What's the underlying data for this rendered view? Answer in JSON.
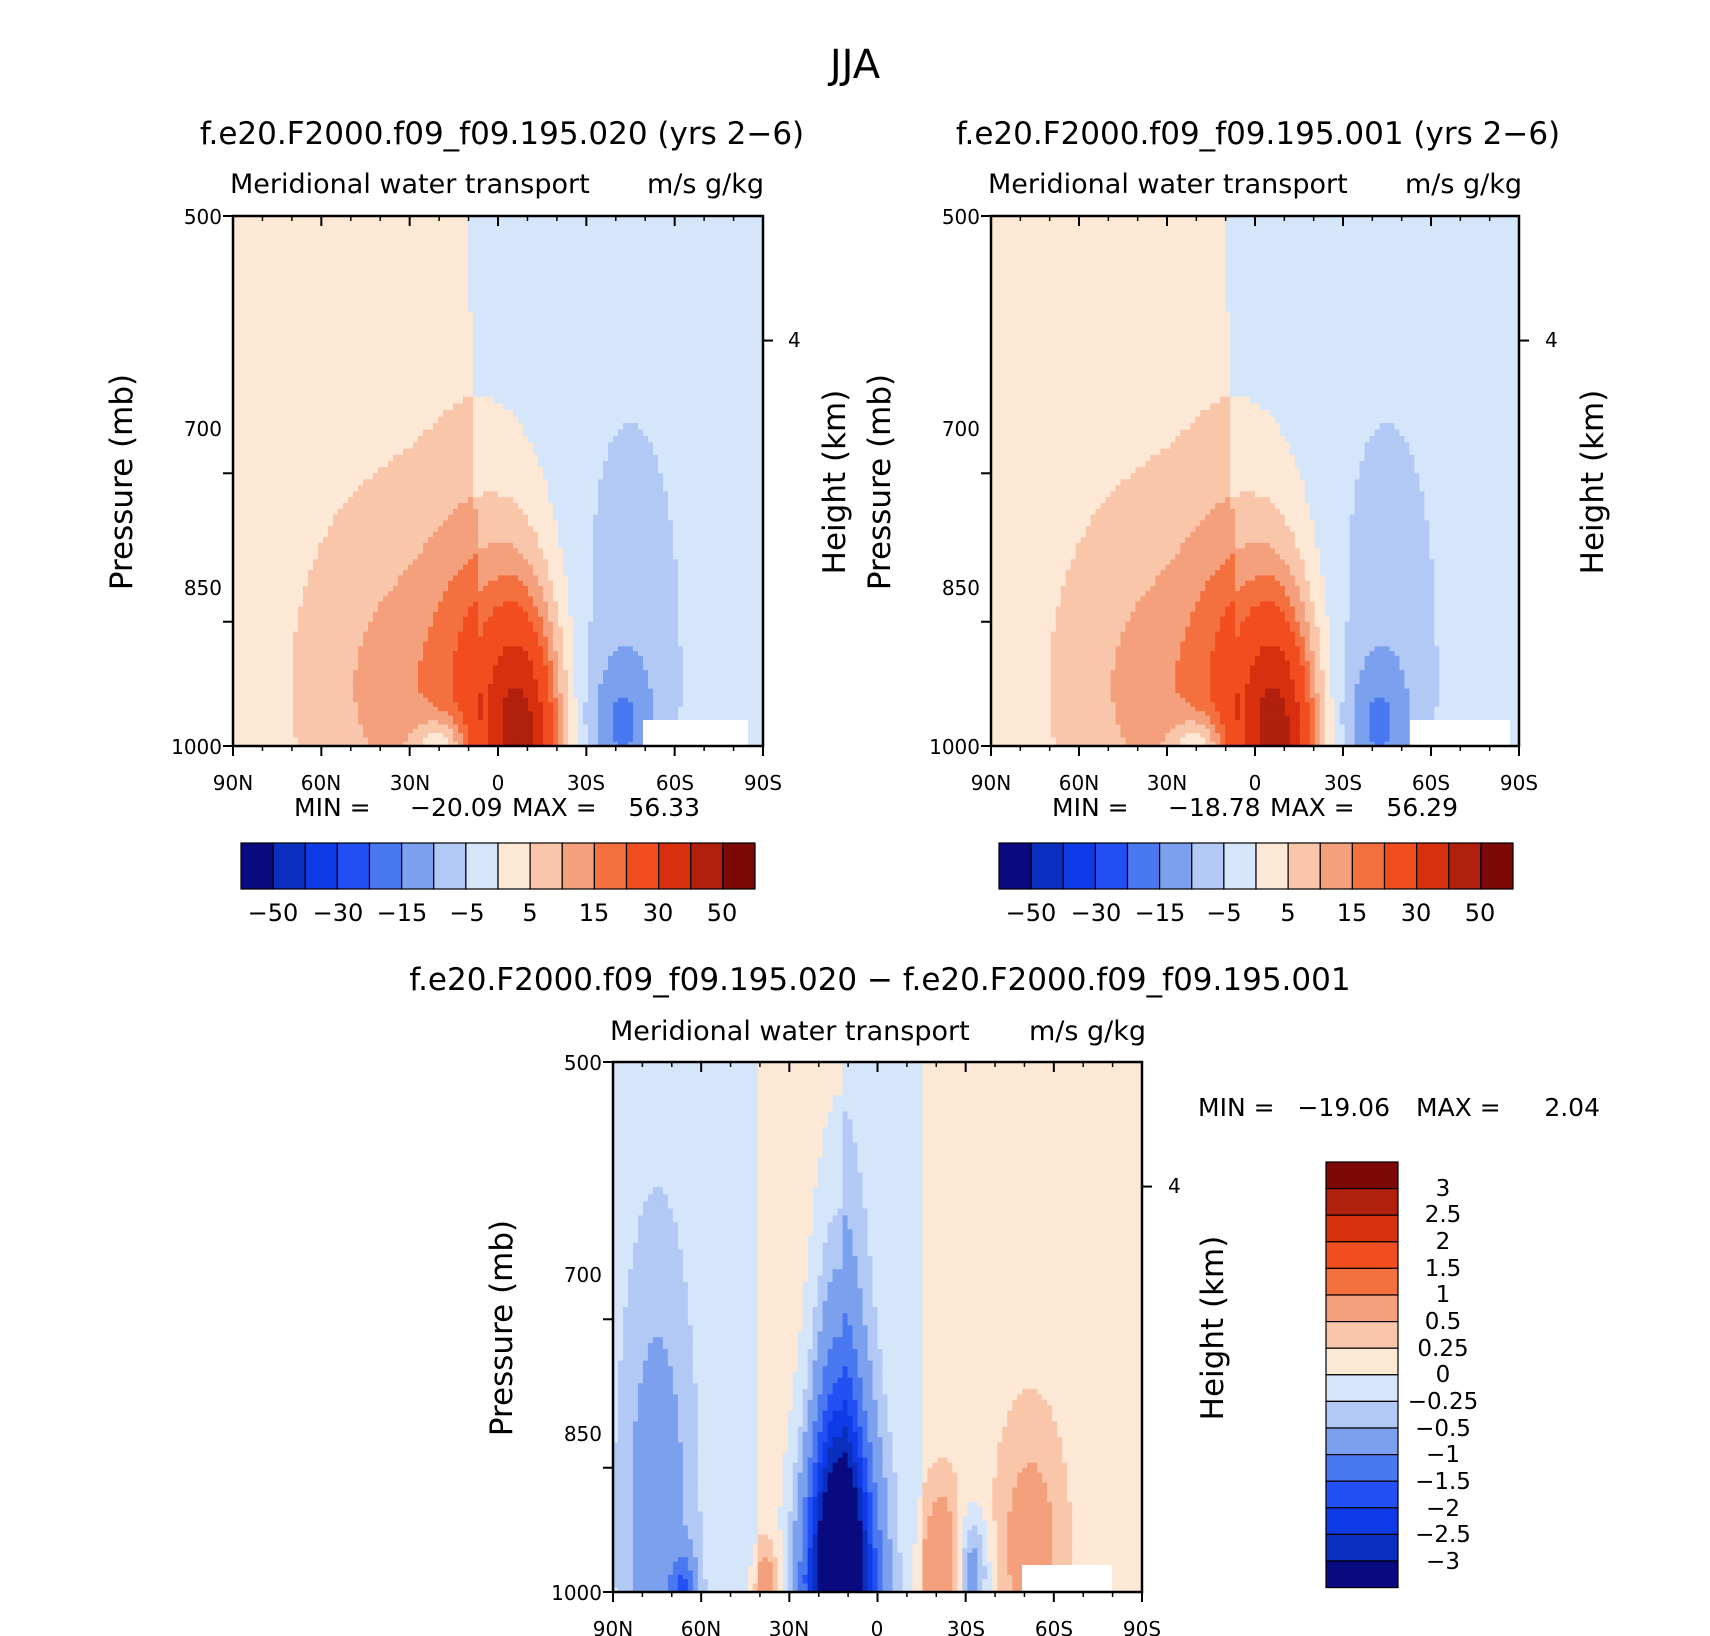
{
  "figure_title": "JJA",
  "colors": {
    "panel": [
      "#0a0a80",
      "#0a2fbf",
      "#0f3be6",
      "#2250f5",
      "#4a78f0",
      "#7ba0ee",
      "#b2c8f5",
      "#d6e6fa",
      "#fde8d6",
      "#f9c6aa",
      "#f5a07d",
      "#f4703e",
      "#f24d1f",
      "#d8300f",
      "#b0200c",
      "#7d0808"
    ],
    "diff": [
      "#0a0a80",
      "#0a2fbf",
      "#0f3be6",
      "#2250f5",
      "#4a78f0",
      "#7ba0ee",
      "#b2c8f5",
      "#d6e6fa",
      "#fde8d6",
      "#f9c6aa",
      "#f5a07d",
      "#f4703e",
      "#f24d1f",
      "#d8300f",
      "#b0200c",
      "#7d0808"
    ]
  },
  "chart_data": [
    {
      "type": "heatmap",
      "title": "f.e20.F2000.f09_f09.195.020 (yrs 2−6)",
      "left_subtitle": "Meridional water transport",
      "right_subtitle": "m/s g/kg",
      "ylabel": "Pressure (mb)",
      "ylabel_right": "Height (km)",
      "yticks": [
        "500",
        "700",
        "850",
        "1000"
      ],
      "yticks_right": [
        "4"
      ],
      "xticks": [
        "90N",
        "60N",
        "30N",
        "0",
        "30S",
        "60S",
        "90S"
      ],
      "min_label": "MIN =",
      "min_value": "−20.09",
      "max_label": "MAX =",
      "max_value": "56.33",
      "colorbar_labels": [
        "−50",
        "−30",
        "−15",
        "−5",
        "5",
        "15",
        "30",
        "50"
      ],
      "peak_lat": -10,
      "peak_value": 56.33,
      "min_value_num": -20.09
    },
    {
      "type": "heatmap",
      "title": "f.e20.F2000.f09_f09.195.001 (yrs 2−6)",
      "left_subtitle": "Meridional water transport",
      "right_subtitle": "m/s g/kg",
      "ylabel": "Pressure (mb)",
      "ylabel_right": "Height (km)",
      "yticks": [
        "500",
        "700",
        "850",
        "1000"
      ],
      "yticks_right": [
        "4"
      ],
      "xticks": [
        "90N",
        "60N",
        "30N",
        "0",
        "30S",
        "60S",
        "90S"
      ],
      "min_label": "MIN =",
      "min_value": "−18.78",
      "max_label": "MAX =",
      "max_value": "56.29",
      "colorbar_labels": [
        "−50",
        "−30",
        "−15",
        "−5",
        "5",
        "15",
        "30",
        "50"
      ],
      "peak_lat": -10,
      "peak_value": 56.29,
      "min_value_num": -18.78
    },
    {
      "type": "heatmap",
      "title": "f.e20.F2000.f09_f09.195.020 − f.e20.F2000.f09_f09.195.001",
      "left_subtitle": "Meridional water transport",
      "right_subtitle": "m/s g/kg",
      "ylabel": "Pressure (mb)",
      "ylabel_right": "Height (km)",
      "yticks": [
        "500",
        "700",
        "850",
        "1000"
      ],
      "yticks_right": [
        "4"
      ],
      "xticks": [
        "90N",
        "60N",
        "30N",
        "0",
        "30S",
        "60S",
        "90S"
      ],
      "min_label": "MIN =",
      "min_value": "−19.06",
      "max_label": "MAX =",
      "max_value": "2.04",
      "colorbar_labels": [
        "3",
        "2.5",
        "2",
        "1.5",
        "1",
        "0.5",
        "0.25",
        "0",
        "−0.25",
        "−0.5",
        "−1",
        "−1.5",
        "−2",
        "−2.5",
        "−3"
      ]
    }
  ]
}
